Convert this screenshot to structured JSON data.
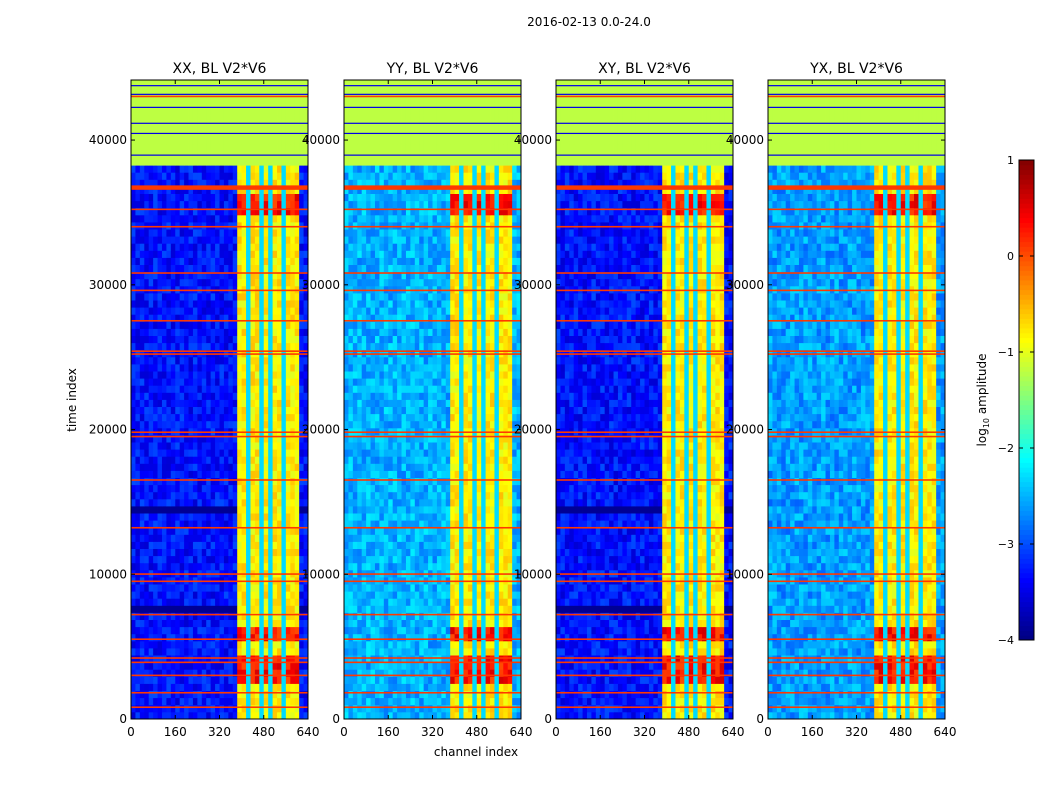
{
  "chart_data": {
    "type": "heatmap",
    "title": "2016-02-13 0.0-24.0",
    "xlabel": "channel index",
    "ylabel": "time index",
    "xlim": [
      0,
      640
    ],
    "ylim": [
      0,
      44150
    ],
    "xticks": [
      "0",
      "160",
      "320",
      "480",
      "640"
    ],
    "xtick_values": [
      0,
      160,
      320,
      480,
      640
    ],
    "yticks": [
      "0",
      "10000",
      "20000",
      "30000",
      "40000"
    ],
    "ytick_values": [
      0,
      10000,
      20000,
      30000,
      40000
    ],
    "colormap": "jet",
    "colorbar": {
      "label": "log10 amplitude",
      "label_main": "log",
      "label_sub": "10",
      "label_rest": " amplitude",
      "clim": [
        -4,
        1
      ],
      "ticks": [
        "1",
        "0",
        "−1",
        "−2",
        "−3",
        "−4"
      ],
      "tick_values": [
        1,
        0,
        -1,
        -2,
        -3,
        -4
      ]
    },
    "panels": [
      {
        "title": "XX, BL V2*V6",
        "background_level": -3.3,
        "dark_bands": [
          [
            14000,
            14800
          ],
          [
            7500,
            8000
          ]
        ]
      },
      {
        "title": "YY, BL V2*V6",
        "background_level": -2.5,
        "dark_bands": []
      },
      {
        "title": "XY, BL V2*V6",
        "background_level": -3.3,
        "dark_bands": [
          [
            14000,
            14800
          ],
          [
            7500,
            8000
          ]
        ]
      },
      {
        "title": "YX, BL V2*V6",
        "background_level": -2.6,
        "dark_bands": []
      }
    ],
    "flagged_time_start": 38500,
    "flagged_level": -1.2,
    "rfi_channel_range": [
      385,
      600
    ],
    "rfi_level": -0.8,
    "rfi_gap_channels": [
      420,
      470,
      510,
      555
    ],
    "strong_rfi_times": [
      [
        35000,
        36500
      ],
      [
        2500,
        4500
      ],
      [
        5500,
        6500
      ]
    ],
    "strong_rfi_level": 0.3,
    "bright_time_lines": [
      43000,
      36800,
      36700,
      35200,
      34000,
      30800,
      29600,
      27500,
      25400,
      25200,
      19800,
      19500,
      16500,
      13200,
      10000,
      9500,
      7200,
      5500,
      4200,
      3900,
      3000,
      1800,
      800
    ],
    "bright_line_level": 0.1
  }
}
